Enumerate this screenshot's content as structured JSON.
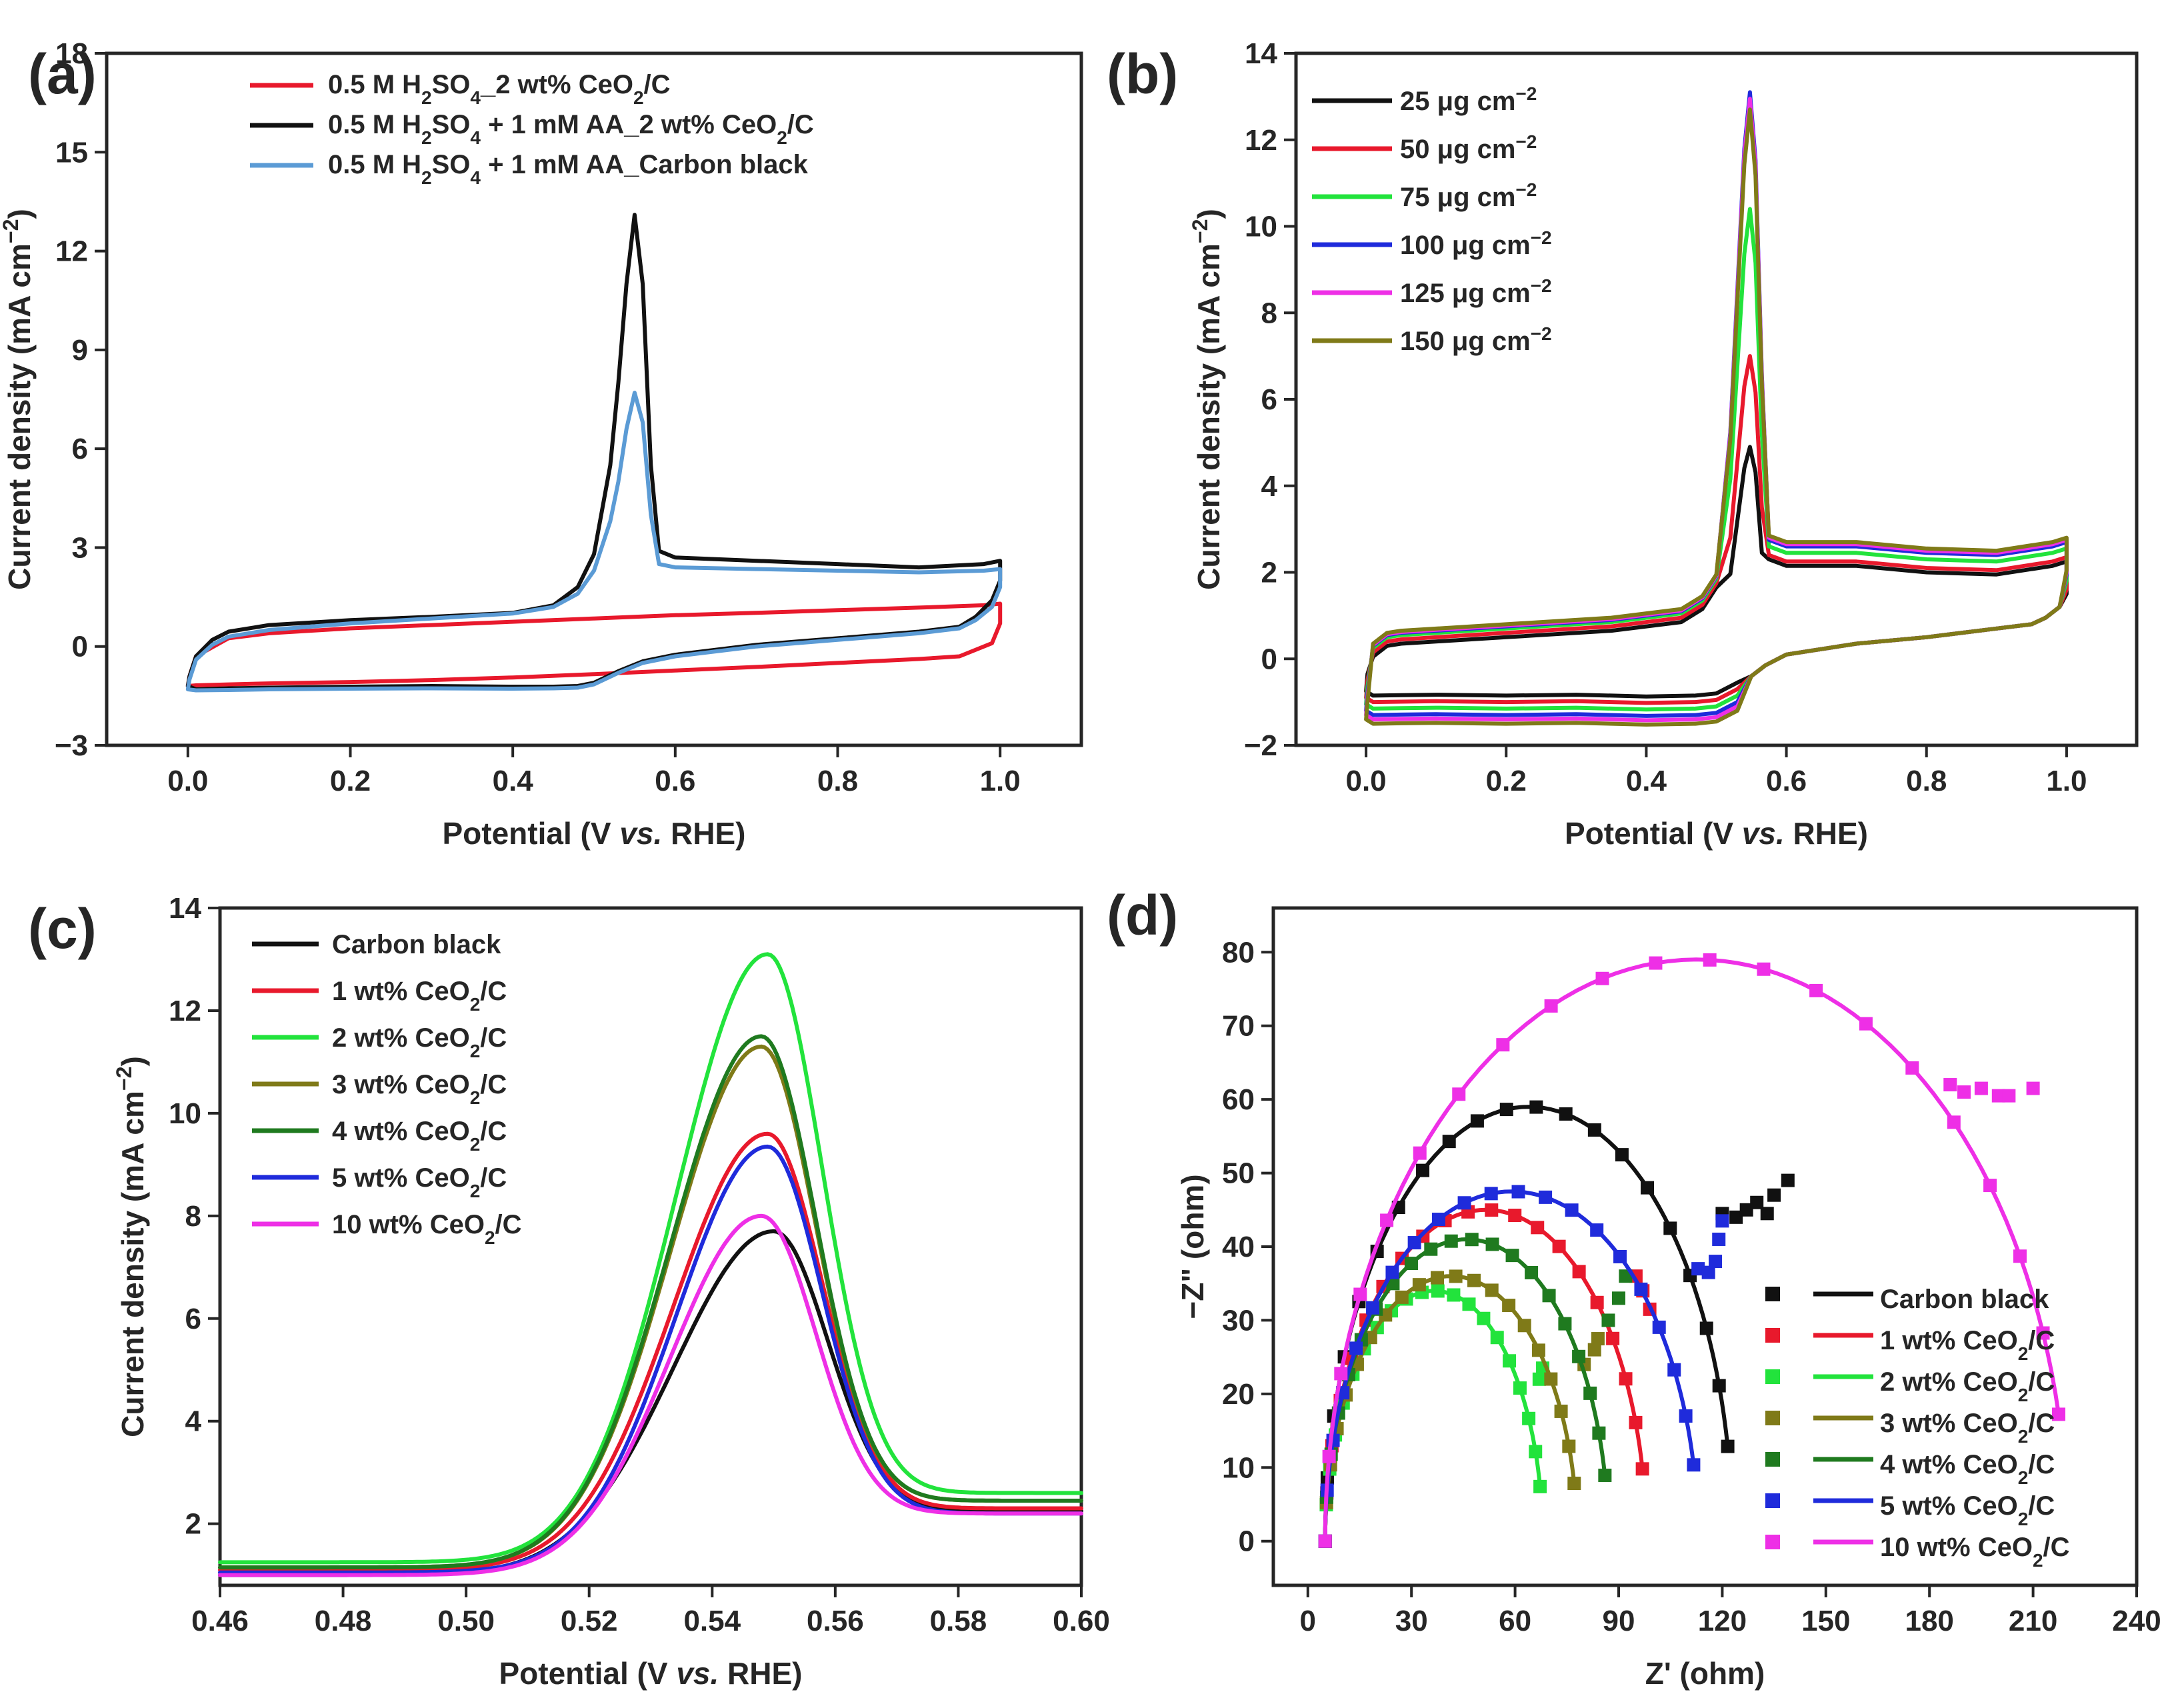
{
  "chart_data": [
    {
      "panel": "(a)",
      "type": "line",
      "xlabel": "Potential (V vs. RHE)",
      "ylabel": "Current density (mA cm−2)",
      "xlim": [
        -0.1,
        1.1
      ],
      "ylim": [
        -3,
        18
      ],
      "xticks": [
        "0.0",
        "0.2",
        "0.4",
        "0.6",
        "0.8",
        "1.0"
      ],
      "yticks": [
        "−3",
        "0",
        "3",
        "6",
        "9",
        "12",
        "15",
        "18"
      ],
      "legend_position": "top-left",
      "legend": [
        "0.5 M H2SO4_2 wt% CeO2/C",
        "0.5 M H2SO4 + 1 mM AA_2 wt% CeO2/C",
        "0.5 M H2SO4 + 1 mM AA_Carbon black"
      ],
      "series": [
        {
          "name": "0.5 M H2SO4_2 wt% CeO2/C",
          "color": "#e8192c",
          "x": [
            0.0,
            0.002,
            0.01,
            0.05,
            0.1,
            0.2,
            0.3,
            0.4,
            0.5,
            0.6,
            0.7,
            0.8,
            0.9,
            0.98,
            1.0,
            1.0,
            0.99,
            0.95,
            0.9,
            0.8,
            0.7,
            0.6,
            0.5,
            0.4,
            0.3,
            0.2,
            0.1,
            0.05,
            0.01,
            0.0
          ],
          "y": [
            -1.2,
            -0.9,
            -0.3,
            0.25,
            0.4,
            0.55,
            0.65,
            0.75,
            0.85,
            0.95,
            1.02,
            1.1,
            1.18,
            1.25,
            1.3,
            0.7,
            0.1,
            -0.3,
            -0.38,
            -0.5,
            -0.62,
            -0.73,
            -0.84,
            -0.94,
            -1.02,
            -1.08,
            -1.12,
            -1.15,
            -1.18,
            -1.2
          ]
        },
        {
          "name": "0.5 M H2SO4 + 1 mM AA_2 wt% CeO2/C",
          "color": "#111111",
          "x": [
            0.0,
            0.002,
            0.01,
            0.03,
            0.05,
            0.1,
            0.2,
            0.3,
            0.4,
            0.45,
            0.48,
            0.5,
            0.52,
            0.53,
            0.54,
            0.55,
            0.56,
            0.57,
            0.58,
            0.6,
            0.7,
            0.8,
            0.9,
            0.98,
            1.0,
            1.0,
            0.99,
            0.97,
            0.95,
            0.9,
            0.8,
            0.7,
            0.6,
            0.56,
            0.53,
            0.5,
            0.48,
            0.45,
            0.4,
            0.3,
            0.2,
            0.1,
            0.05,
            0.01,
            0.0
          ],
          "y": [
            -1.2,
            -0.9,
            -0.3,
            0.2,
            0.45,
            0.65,
            0.8,
            0.9,
            1.02,
            1.25,
            1.8,
            2.8,
            5.5,
            8.0,
            11.0,
            13.1,
            11.0,
            5.5,
            2.9,
            2.7,
            2.6,
            2.5,
            2.4,
            2.5,
            2.6,
            2.0,
            1.4,
            0.9,
            0.6,
            0.45,
            0.25,
            0.05,
            -0.25,
            -0.45,
            -0.75,
            -1.1,
            -1.2,
            -1.22,
            -1.22,
            -1.2,
            -1.22,
            -1.25,
            -1.27,
            -1.3,
            -1.2
          ]
        },
        {
          "name": "0.5 M H2SO4 + 1 mM AA_Carbon black",
          "color": "#5b9bd5",
          "x": [
            0.0,
            0.002,
            0.01,
            0.03,
            0.05,
            0.1,
            0.2,
            0.3,
            0.4,
            0.45,
            0.48,
            0.5,
            0.52,
            0.53,
            0.54,
            0.55,
            0.56,
            0.57,
            0.58,
            0.6,
            0.7,
            0.8,
            0.9,
            0.98,
            1.0,
            1.0,
            0.99,
            0.97,
            0.95,
            0.9,
            0.8,
            0.7,
            0.6,
            0.56,
            0.53,
            0.5,
            0.48,
            0.45,
            0.4,
            0.3,
            0.2,
            0.1,
            0.05,
            0.01,
            0.0
          ],
          "y": [
            -1.3,
            -1.0,
            -0.4,
            0.05,
            0.3,
            0.5,
            0.7,
            0.85,
            1.0,
            1.2,
            1.6,
            2.3,
            3.8,
            5.0,
            6.6,
            7.7,
            6.8,
            4.0,
            2.5,
            2.4,
            2.35,
            2.3,
            2.25,
            2.3,
            2.35,
            1.8,
            1.2,
            0.8,
            0.55,
            0.4,
            0.2,
            0.0,
            -0.3,
            -0.5,
            -0.8,
            -1.15,
            -1.25,
            -1.27,
            -1.28,
            -1.27,
            -1.28,
            -1.3,
            -1.32,
            -1.33,
            -1.3
          ]
        }
      ]
    },
    {
      "panel": "(b)",
      "type": "line",
      "xlabel": "Potential (V vs. RHE)",
      "ylabel": "Current density (mA cm−2)",
      "xlim": [
        -0.1,
        1.1
      ],
      "ylim": [
        -2,
        14
      ],
      "xticks": [
        "0.0",
        "0.2",
        "0.4",
        "0.6",
        "0.8",
        "1.0"
      ],
      "yticks": [
        "−2",
        "0",
        "2",
        "4",
        "6",
        "8",
        "10",
        "12",
        "14"
      ],
      "legend_position": "top-left",
      "series": [
        {
          "name": "25 μg cm−2",
          "color": "#111111",
          "peak": 4.9,
          "plateau": 2.1,
          "base": -0.85,
          "startup": 0.35
        },
        {
          "name": "50 μg cm−2",
          "color": "#e8192c",
          "peak": 7.0,
          "plateau": 2.2,
          "base": -1.0,
          "startup": 0.45
        },
        {
          "name": "75 μg cm−2",
          "color": "#22e33c",
          "peak": 10.4,
          "plateau": 2.4,
          "base": -1.15,
          "startup": 0.55
        },
        {
          "name": "100 μg cm−2",
          "color": "#1f2bdb",
          "peak": 13.1,
          "plateau": 2.55,
          "base": -1.3,
          "startup": 0.6
        },
        {
          "name": "125 μg cm−2",
          "color": "#ee2fe6",
          "peak": 12.95,
          "plateau": 2.6,
          "base": -1.4,
          "startup": 0.62
        },
        {
          "name": "150 μg cm−2",
          "color": "#7f7a18",
          "peak": 12.7,
          "plateau": 2.65,
          "base": -1.5,
          "startup": 0.65
        }
      ]
    },
    {
      "panel": "(c)",
      "type": "line",
      "xlabel": "Potential (V vs. RHE)",
      "ylabel": "Current density (mA cm−2)",
      "xlim": [
        0.46,
        0.6
      ],
      "ylim": [
        0.8,
        14
      ],
      "xticks": [
        "0.46",
        "0.48",
        "0.50",
        "0.52",
        "0.54",
        "0.56",
        "0.58",
        "0.60"
      ],
      "yticks": [
        "2",
        "4",
        "6",
        "8",
        "10",
        "12",
        "14"
      ],
      "legend_position": "top-left",
      "series": [
        {
          "name": "Carbon black",
          "color": "#111111",
          "peak": 7.7,
          "x0": 0.55,
          "start": 1.0,
          "end": 2.25,
          "wl": 0.034
        },
        {
          "name": "1 wt% CeO2/C",
          "color": "#e8192c",
          "peak": 9.6,
          "x0": 0.549,
          "start": 1.1,
          "end": 2.3,
          "wl": 0.032
        },
        {
          "name": "2 wt% CeO2/C",
          "color": "#22e33c",
          "peak": 13.1,
          "x0": 0.549,
          "start": 1.25,
          "end": 2.6,
          "wl": 0.031
        },
        {
          "name": "3 wt% CeO2/C",
          "color": "#7f7a18",
          "peak": 11.3,
          "x0": 0.548,
          "start": 1.15,
          "end": 2.45,
          "wl": 0.031
        },
        {
          "name": "4 wt% CeO2/C",
          "color": "#1f7a1f",
          "peak": 11.5,
          "x0": 0.548,
          "start": 1.15,
          "end": 2.45,
          "wl": 0.031
        },
        {
          "name": "5 wt% CeO2/C",
          "color": "#1f2bdb",
          "peak": 9.35,
          "x0": 0.549,
          "start": 1.05,
          "end": 2.2,
          "wl": 0.031
        },
        {
          "name": "10 wt% CeO2/C",
          "color": "#ee2fe6",
          "peak": 8.0,
          "x0": 0.548,
          "start": 1.0,
          "end": 2.2,
          "wl": 0.031
        }
      ]
    },
    {
      "panel": "(d)",
      "type": "scatter",
      "xlabel": "Z' (ohm)",
      "ylabel": "−Z'' (ohm)",
      "xlim": [
        -10,
        240
      ],
      "ylim": [
        -6,
        86
      ],
      "xticks": [
        "0",
        "30",
        "60",
        "90",
        "120",
        "150",
        "180",
        "210",
        "240"
      ],
      "yticks": [
        "0",
        "10",
        "20",
        "30",
        "40",
        "50",
        "60",
        "70",
        "80"
      ],
      "legend_position": "bottom-right",
      "series": [
        {
          "name": "Carbon black",
          "color": "#111111",
          "R0": 5,
          "D": 118,
          "H": 59,
          "points": [
            [
              120,
              44.5
            ],
            [
              124,
              44
            ],
            [
              127,
              45
            ],
            [
              130,
              46
            ],
            [
              133,
              44.5
            ],
            [
              135,
              47
            ],
            [
              139,
              49
            ]
          ]
        },
        {
          "name": "1 wt% CeO2/C",
          "color": "#e8192c",
          "R0": 5,
          "D": 93,
          "H": 45,
          "points": [
            [
              99,
              31.5
            ],
            [
              97,
              34
            ],
            [
              95,
              36
            ]
          ]
        },
        {
          "name": "2 wt% CeO2/C",
          "color": "#22e33c",
          "R0": 5,
          "D": 63,
          "H": 34,
          "points": [
            [
              67,
              22
            ],
            [
              68,
              23.5
            ]
          ]
        },
        {
          "name": "3 wt% CeO2/C",
          "color": "#7f7a18",
          "R0": 5,
          "D": 73,
          "H": 36,
          "points": [
            [
              80,
              24
            ],
            [
              83,
              26
            ],
            [
              84,
              27.5
            ]
          ]
        },
        {
          "name": "4 wt% CeO2/C",
          "color": "#1f7a1f",
          "R0": 5,
          "D": 82,
          "H": 41,
          "points": [
            [
              87,
              30
            ],
            [
              90,
              33
            ],
            [
              92,
              36
            ]
          ]
        },
        {
          "name": "5 wt% CeO2/C",
          "color": "#1f2bdb",
          "R0": 5,
          "D": 108,
          "H": 47.5,
          "points": [
            [
              113,
              37
            ],
            [
              116,
              36.5
            ],
            [
              118,
              38
            ],
            [
              119,
              41
            ],
            [
              120,
              43.5
            ]
          ]
        },
        {
          "name": "10 wt% CeO2/C",
          "color": "#ee2fe6",
          "R0": 5,
          "D": 215,
          "H": 79,
          "points": [
            [
              186,
              62
            ],
            [
              190,
              61
            ],
            [
              195,
              61.5
            ],
            [
              200,
              60.5
            ],
            [
              203,
              60.5
            ],
            [
              210,
              61.5
            ]
          ]
        }
      ]
    }
  ],
  "panels": {
    "a": {
      "label": "(a)",
      "ylabel": {
        "main": "Current density (mA cm",
        "sup": "−2",
        "close": ")"
      },
      "xlabel": {
        "pre": "Potential (V ",
        "it": "vs.",
        "post": " RHE)"
      },
      "xticks": [
        "0.0",
        "0.2",
        "0.4",
        "0.6",
        "0.8",
        "1.0"
      ],
      "yticks": [
        "−3",
        "0",
        "3",
        "6",
        "9",
        "12",
        "15",
        "18"
      ],
      "legend": [
        {
          "a": "0.5 M H",
          "s1": "2",
          "b": "SO",
          "s2": "4",
          "c": "_2 wt% CeO",
          "s3": "2",
          "d": "/C"
        },
        {
          "a": "0.5 M H",
          "s1": "2",
          "b": "SO",
          "s2": "4",
          "c": " + 1 mM AA_2 wt% CeO",
          "s3": "2",
          "d": "/C"
        },
        {
          "a": "0.5 M H",
          "s1": "2",
          "b": "SO",
          "s2": "4",
          "c": " + 1 mM AA_Carbon black",
          "s3": "",
          "d": ""
        }
      ]
    },
    "b": {
      "label": "(b)",
      "ylabel": {
        "main": "Current density (mA cm",
        "sup": "−2",
        "close": ")"
      },
      "xlabel": {
        "pre": "Potential (V ",
        "it": "vs.",
        "post": " RHE)"
      },
      "xticks": [
        "0.0",
        "0.2",
        "0.4",
        "0.6",
        "0.8",
        "1.0"
      ],
      "yticks": [
        "−2",
        "0",
        "2",
        "4",
        "6",
        "8",
        "10",
        "12",
        "14"
      ],
      "legend": [
        {
          "a": "25 μg cm",
          "sup": "−2"
        },
        {
          "a": "50 μg cm",
          "sup": "−2"
        },
        {
          "a": "75 μg cm",
          "sup": "−2"
        },
        {
          "a": "100 μg cm",
          "sup": "−2"
        },
        {
          "a": "125 μg cm",
          "sup": "−2"
        },
        {
          "a": "150 μg cm",
          "sup": "−2"
        }
      ]
    },
    "c": {
      "label": "(c)",
      "ylabel": {
        "main": "Current density (mA cm",
        "sup": "−2",
        "close": ")"
      },
      "xlabel": {
        "pre": "Potential (V ",
        "it": "vs.",
        "post": " RHE)"
      },
      "xticks": [
        "0.46",
        "0.48",
        "0.50",
        "0.52",
        "0.54",
        "0.56",
        "0.58",
        "0.60"
      ],
      "yticks": [
        "2",
        "4",
        "6",
        "8",
        "10",
        "12",
        "14"
      ],
      "legend": [
        {
          "a": "Carbon black",
          "sub": "",
          "b": ""
        },
        {
          "a": "1 wt% CeO",
          "sub": "2",
          "b": "/C"
        },
        {
          "a": "2 wt% CeO",
          "sub": "2",
          "b": "/C"
        },
        {
          "a": "3 wt% CeO",
          "sub": "2",
          "b": "/C"
        },
        {
          "a": "4 wt% CeO",
          "sub": "2",
          "b": "/C"
        },
        {
          "a": "5 wt% CeO",
          "sub": "2",
          "b": "/C"
        },
        {
          "a": "10 wt% CeO",
          "sub": "2",
          "b": "/C"
        }
      ]
    },
    "d": {
      "label": "(d)",
      "ylabel": "−Z\" (ohm)",
      "xlabel": "Z' (ohm)",
      "xticks": [
        "0",
        "30",
        "60",
        "90",
        "120",
        "150",
        "180",
        "210",
        "240"
      ],
      "yticks": [
        "0",
        "10",
        "20",
        "30",
        "40",
        "50",
        "60",
        "70",
        "80"
      ],
      "legend": [
        {
          "a": "Carbon black",
          "sub": "",
          "b": ""
        },
        {
          "a": "1 wt% CeO",
          "sub": "2",
          "b": "/C"
        },
        {
          "a": "2 wt% CeO",
          "sub": "2",
          "b": "/C"
        },
        {
          "a": "3 wt% CeO",
          "sub": "2",
          "b": "/C"
        },
        {
          "a": "4 wt% CeO",
          "sub": "2",
          "b": "/C"
        },
        {
          "a": "5 wt% CeO",
          "sub": "2",
          "b": "/C"
        },
        {
          "a": "10 wt% CeO",
          "sub": "2",
          "b": "/C"
        }
      ]
    }
  }
}
